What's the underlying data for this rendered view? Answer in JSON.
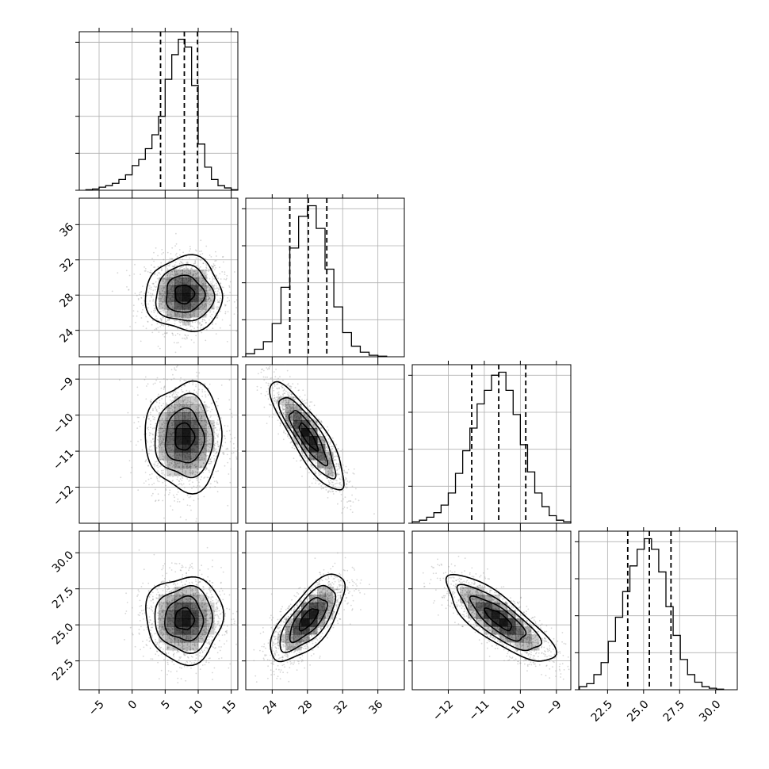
{
  "chart_data": {
    "type": "corner",
    "title": "",
    "grid": true,
    "colors": {
      "line": "#000000",
      "samples": "#8c8c8c",
      "density": "#000000",
      "grid": "#b0b0b0"
    },
    "parameters": [
      {
        "label": "",
        "range": [
          -8,
          16
        ],
        "ticks": [
          -5,
          0,
          5,
          10,
          15
        ],
        "tick_labels": [
          "−5",
          "0",
          "5",
          "10",
          "15"
        ],
        "quantiles": [
          4.3,
          7.9,
          9.9
        ],
        "mean": 7.9,
        "sigma": 2.9
      },
      {
        "label": "",
        "range": [
          21,
          39
        ],
        "ticks": [
          24,
          28,
          32,
          36
        ],
        "tick_labels": [
          "24",
          "28",
          "32",
          "36"
        ],
        "quantiles": [
          26.0,
          28.1,
          30.2
        ],
        "mean": 28.1,
        "sigma": 2.1
      },
      {
        "label": "",
        "range": [
          -13.0,
          -8.6
        ],
        "ticks": [
          -12,
          -11,
          -10,
          -9
        ],
        "tick_labels": [
          "−12",
          "−11",
          "−10",
          "−9"
        ],
        "quantiles": [
          -11.35,
          -10.6,
          -9.85
        ],
        "mean": -10.6,
        "sigma": 0.75
      },
      {
        "label": "",
        "range": [
          20.5,
          31.5
        ],
        "ticks": [
          22.5,
          25.0,
          27.5,
          30.0
        ],
        "tick_labels": [
          "22.5",
          "25.0",
          "27.5",
          "30.0"
        ],
        "quantiles": [
          23.9,
          25.4,
          26.9
        ],
        "mean": 25.4,
        "sigma": 1.5
      }
    ],
    "histograms": [
      {
        "bins": [
          -6.5,
          -5.5,
          -4.5,
          -3.5,
          -2.5,
          -1.5,
          -0.5,
          0.5,
          1.5,
          2.5,
          3.5,
          4.5,
          5.5,
          6.5,
          7.5,
          8.5,
          9.5,
          10.5,
          11.5,
          12.5,
          13.5,
          14.5,
          15.5
        ],
        "counts": [
          0.004,
          0.008,
          0.02,
          0.03,
          0.045,
          0.07,
          0.1,
          0.16,
          0.2,
          0.27,
          0.36,
          0.48,
          0.72,
          0.88,
          0.98,
          0.93,
          0.68,
          0.3,
          0.15,
          0.07,
          0.03,
          0.015,
          0.004
        ]
      },
      {
        "bins": [
          21.5,
          22.5,
          23.5,
          24.5,
          25.5,
          26.5,
          27.5,
          28.5,
          29.5,
          30.5,
          31.5,
          32.5,
          33.5,
          34.5,
          35.5,
          36.5
        ],
        "counts": [
          0.02,
          0.05,
          0.1,
          0.22,
          0.46,
          0.72,
          0.93,
          1.0,
          0.85,
          0.58,
          0.33,
          0.16,
          0.07,
          0.03,
          0.01,
          0.004
        ]
      },
      {
        "bins": [
          -12.9,
          -12.7,
          -12.5,
          -12.3,
          -12.1,
          -11.9,
          -11.7,
          -11.5,
          -11.3,
          -11.1,
          -10.9,
          -10.7,
          -10.5,
          -10.3,
          -10.1,
          -9.9,
          -9.7,
          -9.5,
          -9.3,
          -9.1,
          -8.9,
          -8.7
        ],
        "counts": [
          0.01,
          0.02,
          0.04,
          0.07,
          0.12,
          0.2,
          0.33,
          0.48,
          0.63,
          0.79,
          0.88,
          0.98,
          1.0,
          0.88,
          0.72,
          0.52,
          0.34,
          0.2,
          0.11,
          0.05,
          0.02,
          0.01
        ]
      },
      {
        "bins": [
          20.8,
          21.3,
          21.8,
          22.3,
          22.8,
          23.3,
          23.8,
          24.3,
          24.8,
          25.3,
          25.8,
          26.3,
          26.8,
          27.3,
          27.8,
          28.3,
          28.8,
          29.3,
          29.8,
          30.3
        ],
        "counts": [
          0.02,
          0.04,
          0.1,
          0.18,
          0.32,
          0.48,
          0.65,
          0.82,
          0.93,
          1.0,
          0.93,
          0.78,
          0.55,
          0.36,
          0.2,
          0.1,
          0.05,
          0.02,
          0.01,
          0.004
        ]
      }
    ],
    "correlations": {
      "1,0": 0.0,
      "2,0": 0.0,
      "2,1": -0.85,
      "3,0": 0.0,
      "3,1": 0.7,
      "3,2": -0.8
    },
    "contour_sigma_levels": [
      0.5,
      1.0,
      1.5,
      2.0
    ]
  }
}
